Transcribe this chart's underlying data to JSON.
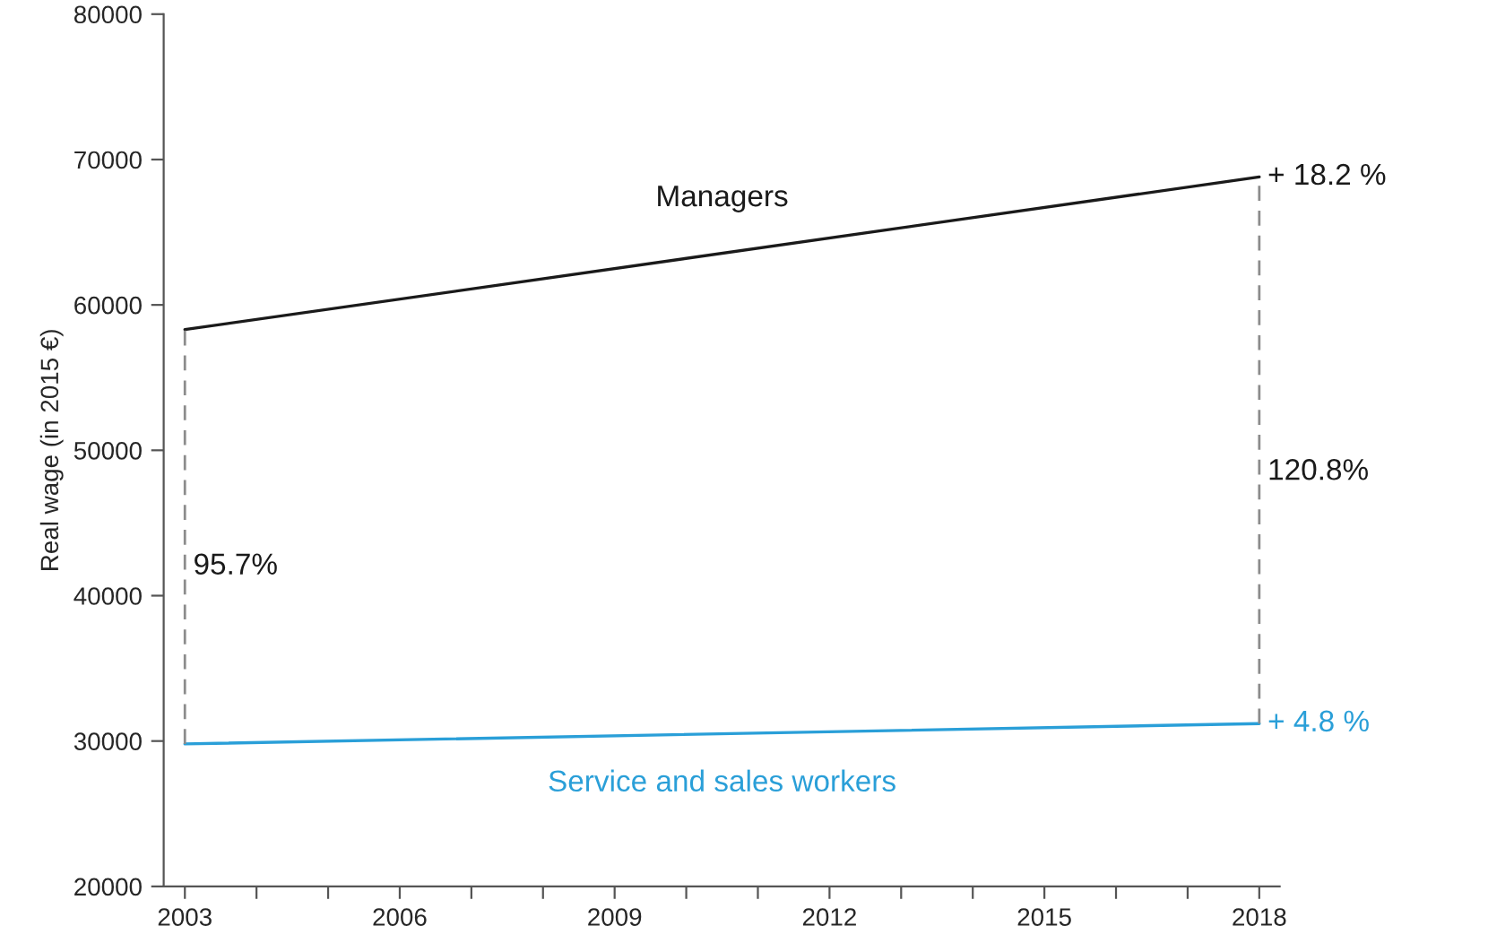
{
  "chart_data": {
    "type": "line",
    "ylabel": "Real wage (in 2015 €)",
    "x": [
      "2003",
      "2018"
    ],
    "xlim": [
      "2002-09-15",
      "2018-04-15"
    ],
    "xticks": [
      "2003",
      {
        "value": "2004",
        "label": null
      },
      {
        "value": "2005",
        "label": null
      },
      "2006",
      {
        "value": "2007",
        "label": null
      },
      {
        "value": "2008",
        "label": null
      },
      "2009",
      {
        "value": "2010",
        "label": null
      },
      {
        "value": "2011",
        "label": null
      },
      "2012",
      {
        "value": "2013",
        "label": null
      },
      {
        "value": "2014",
        "label": null
      },
      "2015",
      {
        "value": "2016",
        "label": null
      },
      {
        "value": "2017",
        "label": null
      },
      "2018"
    ],
    "ylim": [
      20000,
      80000
    ],
    "yticks": [
      20000,
      30000,
      40000,
      50000,
      60000,
      70000,
      80000
    ],
    "grid": false,
    "legend": false,
    "marker": "none",
    "series": [
      {
        "name": "Managers",
        "color": "#1a1a1a",
        "values": [
          58300,
          68800
        ]
      },
      {
        "name": "Service and sales workers",
        "color": "#2a9fd8",
        "values": [
          29800,
          31200
        ]
      },
      {
        "color": "#8c8c8c",
        "x": [
          "2003",
          "2003"
        ],
        "values": [
          29800,
          58300
        ],
        "line_style": "dashed"
      },
      {
        "color": "#8c8c8c",
        "x": [
          "2018",
          "2018"
        ],
        "values": [
          31200,
          68800
        ],
        "line_style": "dashed"
      }
    ],
    "annotations": [
      {
        "text": "+ 18.2 %",
        "x": "2018",
        "y": 68800
      },
      {
        "text": "+ 4.8 %",
        "x": "2018",
        "y": 31200
      },
      {
        "text": "95.7%",
        "x": "2003",
        "y": 42000
      },
      {
        "text": "120.8%",
        "x": "2018",
        "y": 48500
      }
    ]
  }
}
